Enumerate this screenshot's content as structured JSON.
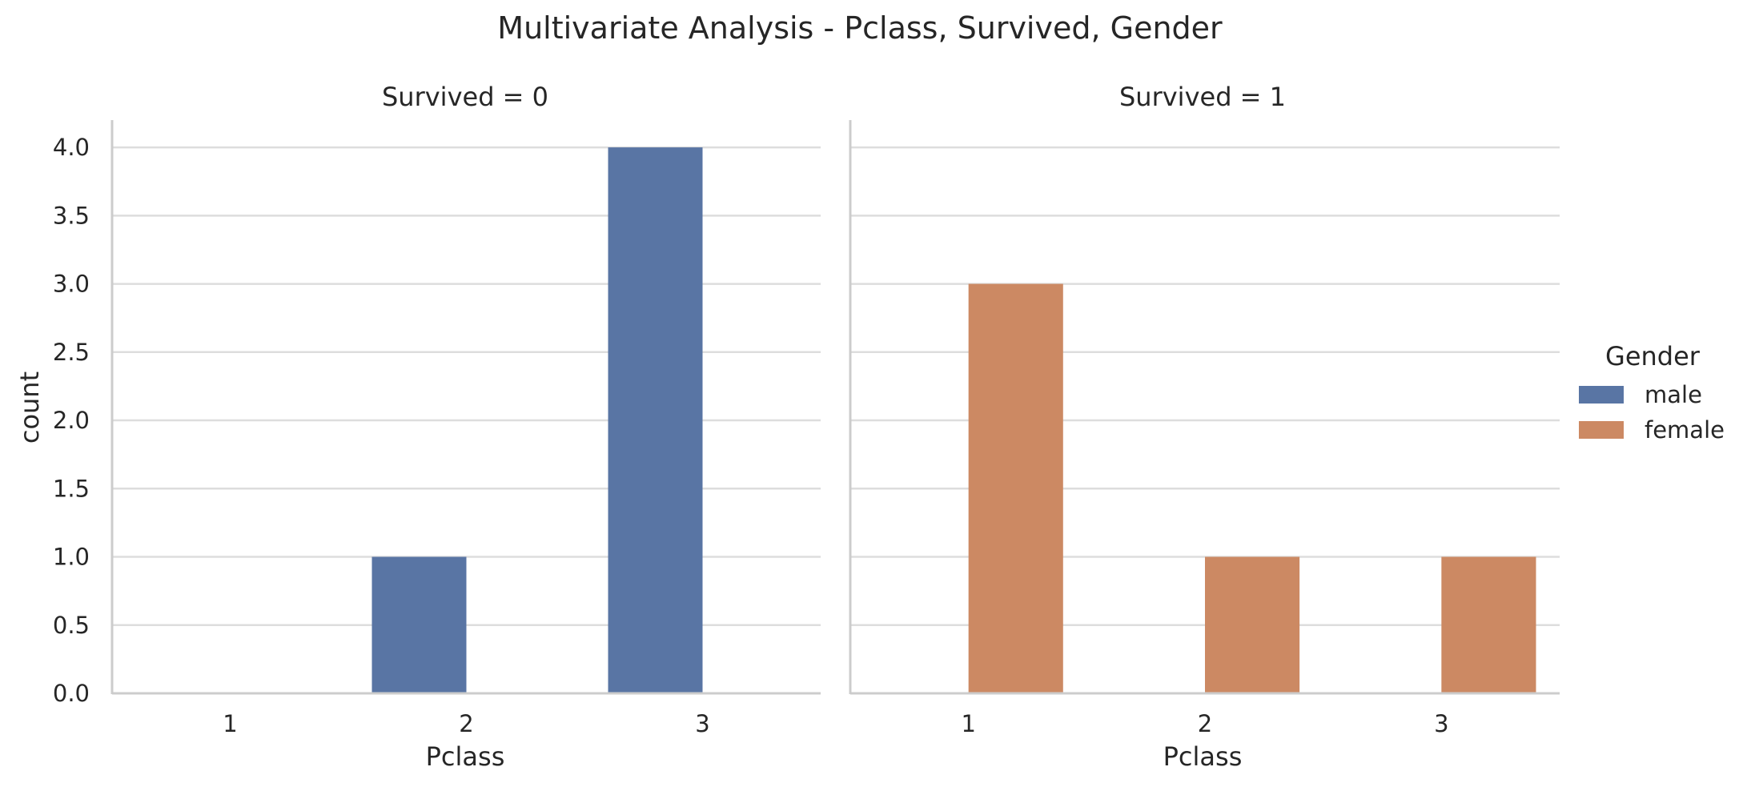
{
  "chart_data": {
    "type": "bar",
    "title": "Multivariate Analysis - Pclass, Survived, Gender",
    "ylabel": "count",
    "ylim": [
      0,
      4.2
    ],
    "yticks": [
      0.0,
      0.5,
      1.0,
      1.5,
      2.0,
      2.5,
      3.0,
      3.5,
      4.0
    ],
    "grid": true,
    "legend": {
      "title": "Gender",
      "placement": "right",
      "entries": [
        "male",
        "female"
      ]
    },
    "colors": {
      "male": "#5975a4",
      "female": "#cc8963",
      "grid": "#dddddd",
      "spine": "#cccccc"
    },
    "categories": [
      "1",
      "2",
      "3"
    ],
    "panels": [
      {
        "title": "Survived = 0",
        "xlabel": "Pclass",
        "series": [
          {
            "name": "male",
            "values": [
              0,
              1,
              4
            ]
          },
          {
            "name": "female",
            "values": [
              0,
              0,
              0
            ]
          }
        ]
      },
      {
        "title": "Survived = 1",
        "xlabel": "Pclass",
        "series": [
          {
            "name": "male",
            "values": [
              0,
              0,
              0
            ]
          },
          {
            "name": "female",
            "values": [
              3,
              1,
              1
            ]
          }
        ]
      }
    ]
  }
}
